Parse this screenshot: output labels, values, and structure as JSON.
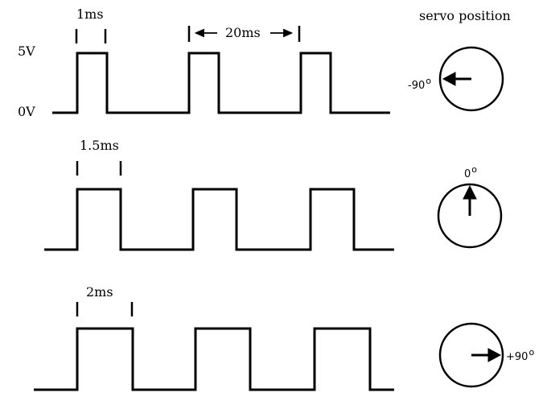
{
  "title": "servo position",
  "voltage_high": "5V",
  "voltage_low": "0V",
  "period_label": "20ms",
  "colors": {
    "line": "#000000",
    "background": "#ffffff"
  },
  "rows": [
    {
      "pulse_label": "1ms",
      "pulse_ms": 1,
      "angle_label": "-90",
      "angle_deg": -90
    },
    {
      "pulse_label": "1.5ms",
      "pulse_ms": 1.5,
      "angle_label": "0",
      "angle_deg": 0
    },
    {
      "pulse_label": "2ms",
      "pulse_ms": 2,
      "angle_label": "+90",
      "angle_deg": 90
    }
  ],
  "degree_symbol": "o"
}
